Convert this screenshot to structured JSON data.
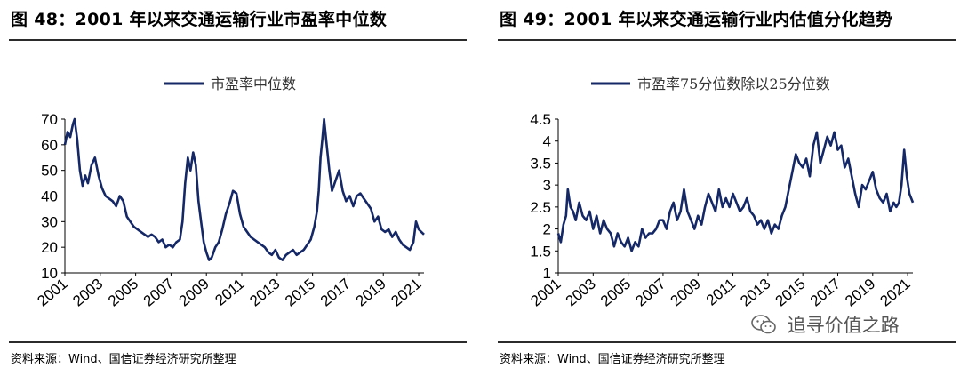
{
  "page": {
    "watermark": "追寻价值之路",
    "colors": {
      "line": "#142766",
      "axis": "#000000",
      "rule": "#2b2b2b"
    }
  },
  "panels": [
    {
      "title": "图 48：2001 年以来交通运输行业市盈率中位数",
      "source": "资料来源：Wind、国信证券经济研究所整理"
    },
    {
      "title": "图 49：2001 年以来交通运输行业内估值分化趋势",
      "source": "资料来源：Wind、国信证券经济研究所整理"
    }
  ],
  "chart_data": [
    {
      "type": "line",
      "title": "",
      "xlabel": "",
      "ylabel": "",
      "legend_position": "top-center",
      "grid": false,
      "xlim": [
        2001,
        2021.3
      ],
      "ylim": [
        10,
        70
      ],
      "y_ticks": [
        10,
        20,
        30,
        40,
        50,
        60,
        70
      ],
      "x_ticks": [
        2001,
        2003,
        2005,
        2007,
        2009,
        2011,
        2013,
        2015,
        2017,
        2019,
        2021
      ],
      "x_tick_labels": [
        "2001",
        "2003",
        "2005",
        "2007",
        "2009",
        "2011",
        "2013",
        "2015",
        "2017",
        "2019",
        "2021"
      ],
      "series": [
        {
          "name": "市盈率中位数",
          "color": "#142766",
          "x": [
            2001.0,
            2001.15,
            2001.3,
            2001.45,
            2001.55,
            2001.7,
            2001.85,
            2002.0,
            2002.15,
            2002.3,
            2002.5,
            2002.7,
            2002.9,
            2003.1,
            2003.3,
            2003.5,
            2003.7,
            2003.9,
            2004.1,
            2004.3,
            2004.5,
            2004.7,
            2004.9,
            2005.1,
            2005.3,
            2005.5,
            2005.7,
            2005.9,
            2006.1,
            2006.3,
            2006.5,
            2006.7,
            2006.9,
            2007.1,
            2007.3,
            2007.5,
            2007.65,
            2007.8,
            2007.95,
            2008.1,
            2008.25,
            2008.4,
            2008.55,
            2008.7,
            2008.85,
            2009.0,
            2009.15,
            2009.3,
            2009.5,
            2009.7,
            2009.9,
            2010.1,
            2010.3,
            2010.5,
            2010.7,
            2010.9,
            2011.1,
            2011.3,
            2011.5,
            2011.7,
            2011.9,
            2012.1,
            2012.3,
            2012.5,
            2012.7,
            2012.9,
            2013.1,
            2013.3,
            2013.5,
            2013.7,
            2013.9,
            2014.1,
            2014.3,
            2014.5,
            2014.7,
            2014.9,
            2015.1,
            2015.25,
            2015.35,
            2015.45,
            2015.55,
            2015.65,
            2015.8,
            2015.95,
            2016.1,
            2016.3,
            2016.5,
            2016.7,
            2016.9,
            2017.1,
            2017.3,
            2017.5,
            2017.7,
            2017.9,
            2018.1,
            2018.3,
            2018.5,
            2018.7,
            2018.9,
            2019.1,
            2019.3,
            2019.5,
            2019.7,
            2019.9,
            2020.1,
            2020.3,
            2020.5,
            2020.7,
            2020.85,
            2021.0,
            2021.15,
            2021.3
          ],
          "values": [
            60,
            65,
            63,
            68,
            70,
            62,
            50,
            44,
            48,
            45,
            52,
            55,
            48,
            43,
            40,
            39,
            38,
            36,
            40,
            38,
            32,
            30,
            28,
            27,
            26,
            25,
            24,
            25,
            24,
            22,
            23,
            20,
            21,
            20,
            22,
            23,
            30,
            45,
            55,
            50,
            57,
            52,
            38,
            30,
            22,
            18,
            15,
            16,
            20,
            22,
            27,
            33,
            37,
            42,
            41,
            33,
            28,
            26,
            24,
            23,
            22,
            21,
            20,
            18,
            17,
            19,
            16,
            15,
            17,
            18,
            19,
            17,
            18,
            19,
            21,
            23,
            28,
            34,
            42,
            55,
            62,
            70,
            60,
            50,
            42,
            46,
            50,
            42,
            38,
            40,
            36,
            40,
            41,
            39,
            37,
            35,
            30,
            32,
            27,
            26,
            27,
            24,
            26,
            23,
            21,
            20,
            19,
            22,
            30,
            27,
            26,
            25
          ]
        }
      ]
    },
    {
      "type": "line",
      "title": "",
      "xlabel": "",
      "ylabel": "",
      "legend_position": "top-center",
      "grid": false,
      "xlim": [
        2001,
        2021.3
      ],
      "ylim": [
        1,
        4.5
      ],
      "y_ticks": [
        1,
        1.5,
        2,
        2.5,
        3,
        3.5,
        4,
        4.5
      ],
      "y_tick_labels": [
        "1",
        "1.5",
        "2",
        "2.5",
        "3",
        "3.5",
        "4",
        "4.5"
      ],
      "x_ticks": [
        2001,
        2003,
        2005,
        2007,
        2009,
        2011,
        2013,
        2015,
        2017,
        2019,
        2021
      ],
      "x_tick_labels": [
        "2001",
        "2003",
        "2005",
        "2007",
        "2009",
        "2011",
        "2013",
        "2015",
        "2017",
        "2019",
        "2021"
      ],
      "series": [
        {
          "name": "市盈率75分位数除以25分位数",
          "color": "#142766",
          "x": [
            2001.0,
            2001.15,
            2001.3,
            2001.45,
            2001.55,
            2001.7,
            2001.85,
            2002.0,
            2002.2,
            2002.4,
            2002.6,
            2002.8,
            2003.0,
            2003.2,
            2003.4,
            2003.6,
            2003.8,
            2004.0,
            2004.2,
            2004.4,
            2004.6,
            2004.8,
            2005.0,
            2005.2,
            2005.4,
            2005.6,
            2005.8,
            2006.0,
            2006.2,
            2006.4,
            2006.6,
            2006.8,
            2007.0,
            2007.2,
            2007.4,
            2007.6,
            2007.8,
            2008.0,
            2008.2,
            2008.4,
            2008.6,
            2008.8,
            2009.0,
            2009.2,
            2009.4,
            2009.6,
            2009.8,
            2010.0,
            2010.2,
            2010.4,
            2010.6,
            2010.8,
            2011.0,
            2011.2,
            2011.4,
            2011.6,
            2011.8,
            2012.0,
            2012.2,
            2012.4,
            2012.6,
            2012.8,
            2013.0,
            2013.2,
            2013.4,
            2013.6,
            2013.8,
            2014.0,
            2014.2,
            2014.4,
            2014.6,
            2014.8,
            2015.0,
            2015.2,
            2015.4,
            2015.6,
            2015.8,
            2016.0,
            2016.2,
            2016.4,
            2016.6,
            2016.8,
            2017.0,
            2017.2,
            2017.4,
            2017.6,
            2017.8,
            2018.0,
            2018.2,
            2018.4,
            2018.6,
            2018.8,
            2019.0,
            2019.2,
            2019.4,
            2019.6,
            2019.8,
            2020.0,
            2020.2,
            2020.35,
            2020.5,
            2020.65,
            2020.8,
            2020.95,
            2021.1,
            2021.3
          ],
          "values": [
            1.9,
            1.7,
            2.1,
            2.3,
            2.9,
            2.5,
            2.4,
            2.2,
            2.6,
            2.3,
            2.2,
            2.4,
            2.0,
            2.3,
            1.9,
            2.2,
            2.0,
            1.9,
            1.6,
            1.9,
            1.7,
            1.6,
            1.8,
            1.5,
            1.7,
            1.6,
            2.0,
            1.8,
            1.9,
            1.9,
            2.0,
            2.2,
            2.2,
            2.0,
            2.4,
            2.6,
            2.2,
            2.4,
            2.9,
            2.4,
            2.2,
            2.0,
            2.3,
            2.1,
            2.5,
            2.8,
            2.6,
            2.4,
            2.9,
            2.5,
            2.7,
            2.5,
            2.8,
            2.6,
            2.4,
            2.5,
            2.7,
            2.4,
            2.3,
            2.1,
            2.2,
            2.0,
            2.2,
            1.9,
            2.1,
            2.0,
            2.3,
            2.5,
            2.9,
            3.3,
            3.7,
            3.5,
            3.4,
            3.6,
            3.2,
            3.9,
            4.2,
            3.5,
            3.8,
            4.1,
            3.9,
            4.2,
            3.8,
            3.9,
            3.4,
            3.6,
            3.2,
            2.8,
            2.5,
            3.0,
            2.9,
            3.1,
            3.3,
            2.9,
            2.7,
            2.6,
            2.8,
            2.4,
            2.6,
            2.5,
            2.6,
            3.0,
            3.8,
            3.2,
            2.8,
            2.6
          ]
        }
      ]
    }
  ]
}
